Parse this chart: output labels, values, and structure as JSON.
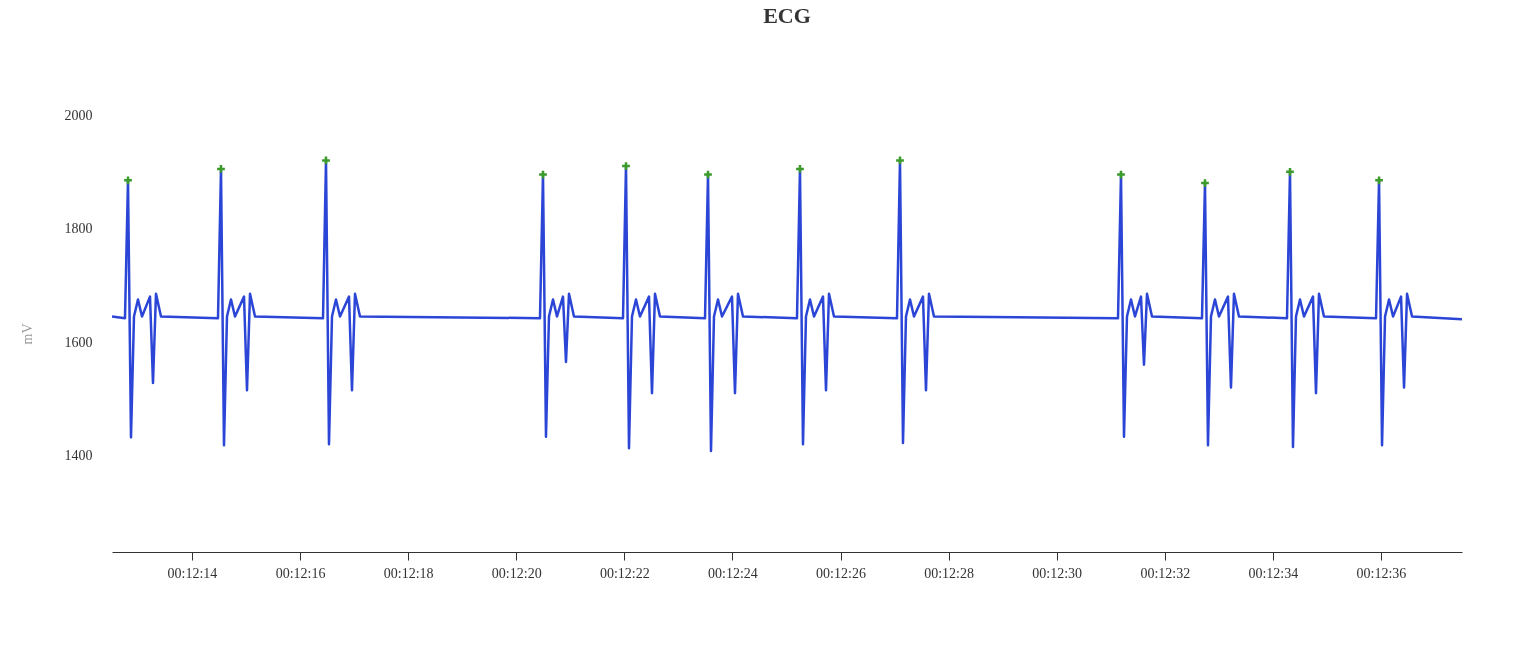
{
  "chart_data": {
    "type": "line",
    "title": "ECG",
    "ylabel": "mV",
    "xlim": [
      0.2034778,
      0.2104165
    ],
    "ylim": [
      1230,
      2000
    ],
    "yticks": [
      1400,
      1600,
      1800,
      2000
    ],
    "xticks": [
      {
        "value": 0.2038889,
        "label": "00:12:14"
      },
      {
        "value": 0.2044444,
        "label": "00:12:16"
      },
      {
        "value": 0.205,
        "label": "00:12:18"
      },
      {
        "value": 0.2055556,
        "label": "00:12:20"
      },
      {
        "value": 0.2061111,
        "label": "00:12:22"
      },
      {
        "value": 0.2066667,
        "label": "00:12:24"
      },
      {
        "value": 0.2072222,
        "label": "00:12:26"
      },
      {
        "value": 0.2077778,
        "label": "00:12:28"
      },
      {
        "value": 0.2083333,
        "label": "00:12:30"
      },
      {
        "value": 0.2088889,
        "label": "00:12:32"
      },
      {
        "value": 0.2094444,
        "label": "00:12:34"
      },
      {
        "value": 0.21,
        "label": "00:12:36"
      }
    ],
    "grid": false,
    "series": [
      {
        "type": "line",
        "color": "#2b45d6",
        "marker": "none",
        "line_style": "solid",
        "x": [
          0.2034778,
          0.2035446,
          0.20356,
          0.2035754,
          0.2035908,
          0.2036114,
          0.203632,
          0.2036731,
          0.2036885,
          0.2037039,
          0.2037296,
          0.2040226,
          0.204038,
          0.2040534,
          0.2040688,
          0.2040894,
          0.20411,
          0.2041563,
          0.2041717,
          0.2041871,
          0.2042128,
          0.2045623,
          0.2045777,
          0.2045931,
          0.2046085,
          0.2046291,
          0.2046497,
          0.2046959,
          0.2047113,
          0.2047267,
          0.2047524,
          0.2056776,
          0.205693,
          0.2057084,
          0.2057238,
          0.2057444,
          0.205765,
          0.2057958,
          0.2058112,
          0.2058266,
          0.2058523,
          0.2061042,
          0.2061196,
          0.206135,
          0.2061504,
          0.206171,
          0.2061916,
          0.2062378,
          0.2062532,
          0.2062686,
          0.2062943,
          0.2065257,
          0.2065411,
          0.2065565,
          0.2065719,
          0.2065925,
          0.2066131,
          0.2066644,
          0.2066798,
          0.2066952,
          0.2067209,
          0.2069985,
          0.2070139,
          0.2070293,
          0.2070447,
          0.2070653,
          0.2070859,
          0.2071322,
          0.2071476,
          0.207163,
          0.2071887,
          0.2075125,
          0.2075279,
          0.2075433,
          0.2075587,
          0.2075793,
          0.2075999,
          0.2076461,
          0.2076615,
          0.2076769,
          0.2077026,
          0.2086484,
          0.2086638,
          0.2086792,
          0.2086946,
          0.2087152,
          0.2087358,
          0.2087666,
          0.208782,
          0.2087974,
          0.2088231,
          0.2090801,
          0.2090955,
          0.2091109,
          0.2091263,
          0.2091469,
          0.2091675,
          0.2092137,
          0.2092291,
          0.2092445,
          0.2092702,
          0.209517,
          0.2095324,
          0.2095478,
          0.2095632,
          0.2095838,
          0.2096044,
          0.2096506,
          0.209666,
          0.2096814,
          0.2097071,
          0.2099747,
          0.2099901,
          0.2100055,
          0.2100209,
          0.2100415,
          0.2100621,
          0.2101032,
          0.2101186,
          0.210134,
          0.2101597,
          0.2104165
        ],
        "values": [
          1645,
          1642,
          1885,
          1432,
          1645,
          1675,
          1645,
          1680,
          1528,
          1685,
          1645,
          1642,
          1905,
          1418,
          1645,
          1675,
          1645,
          1680,
          1515,
          1685,
          1645,
          1642,
          1920,
          1420,
          1645,
          1675,
          1645,
          1680,
          1515,
          1685,
          1645,
          1642,
          1895,
          1433,
          1645,
          1675,
          1645,
          1680,
          1565,
          1685,
          1645,
          1642,
          1910,
          1413,
          1645,
          1675,
          1645,
          1680,
          1510,
          1685,
          1645,
          1642,
          1895,
          1408,
          1645,
          1675,
          1645,
          1680,
          1510,
          1685,
          1645,
          1642,
          1905,
          1420,
          1645,
          1675,
          1645,
          1680,
          1515,
          1685,
          1645,
          1642,
          1920,
          1422,
          1645,
          1675,
          1645,
          1680,
          1515,
          1685,
          1645,
          1642,
          1895,
          1433,
          1645,
          1675,
          1645,
          1680,
          1560,
          1685,
          1645,
          1642,
          1880,
          1418,
          1645,
          1675,
          1645,
          1680,
          1520,
          1685,
          1645,
          1642,
          1900,
          1415,
          1645,
          1675,
          1645,
          1680,
          1510,
          1685,
          1645,
          1642,
          1885,
          1418,
          1645,
          1675,
          1645,
          1680,
          1520,
          1685,
          1645,
          1640
        ]
      },
      {
        "type": "scatter",
        "color": "#3a9a2a",
        "marker": "cross",
        "x": [
          0.20356,
          0.204038,
          0.2045777,
          0.205693,
          0.2061196,
          0.2065411,
          0.2070139,
          0.2075279,
          0.2086638,
          0.2090955,
          0.2095324,
          0.2099901
        ],
        "values": [
          1885,
          1905,
          1920,
          1895,
          1910,
          1895,
          1905,
          1920,
          1895,
          1880,
          1900,
          1885
        ]
      }
    ]
  }
}
